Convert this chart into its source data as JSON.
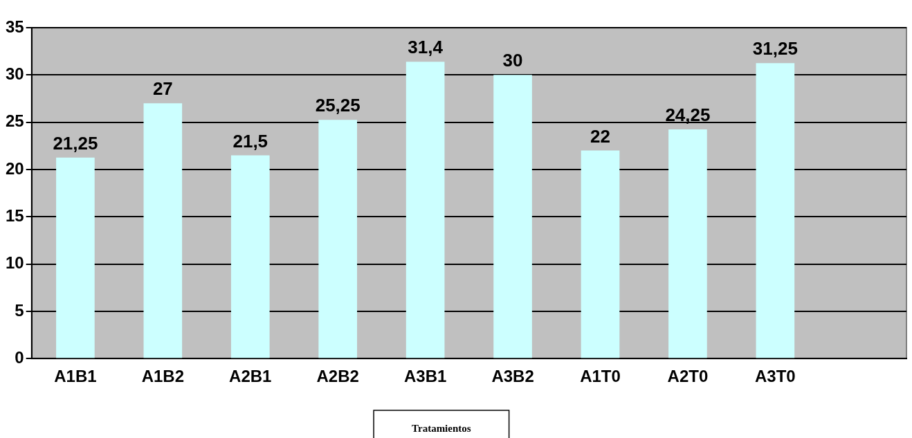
{
  "chart_data": {
    "type": "bar",
    "xlabel": "Tratamientos",
    "categories": [
      "A1B1",
      "A1B2",
      "A2B1",
      "A2B2",
      "A3B1",
      "A3B2",
      "A1T0",
      "A2T0",
      "A3T0",
      null
    ],
    "values": [
      21.25,
      27,
      21.5,
      25.25,
      31.4,
      30,
      22,
      24.25,
      31.25,
      null
    ],
    "value_labels": [
      "21,25",
      "27",
      "21,5",
      "25,25",
      "31,4",
      "30",
      "22",
      "24,25",
      "31,25",
      null
    ],
    "color": "#ccffff",
    "ylim": [
      0,
      35
    ],
    "yticks": [
      0,
      5,
      10,
      15,
      20,
      25,
      30,
      35
    ],
    "grid": "y",
    "legend": false
  }
}
